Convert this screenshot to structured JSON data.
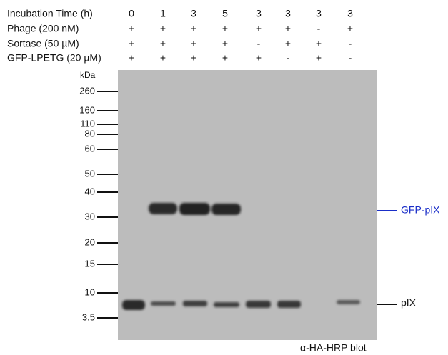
{
  "conditions": [
    {
      "label": "Incubation Time (h)",
      "values": [
        "0",
        "1",
        "3",
        "5",
        "3",
        "3",
        "3",
        "3"
      ]
    },
    {
      "label": "Phage (200 nM)",
      "values": [
        "+",
        "+",
        "+",
        "+",
        "+",
        "+",
        "-",
        "+"
      ]
    },
    {
      "label": "Sortase (50 µM)",
      "values": [
        "+",
        "+",
        "+",
        "+",
        "-",
        "+",
        "+",
        "-"
      ]
    },
    {
      "label": "GFP-LPETG (20 µM)",
      "values": [
        "+",
        "+",
        "+",
        "+",
        "+",
        "-",
        "+",
        "-"
      ]
    }
  ],
  "markers": {
    "unit": "kDa",
    "labels": [
      "260",
      "160",
      "110",
      "80",
      "60",
      "50",
      "40",
      "30",
      "20",
      "15",
      "10",
      "3.5"
    ]
  },
  "band_labels": [
    "GFP-pIX",
    "pIX"
  ],
  "caption": "α-HA-HRP blot"
}
